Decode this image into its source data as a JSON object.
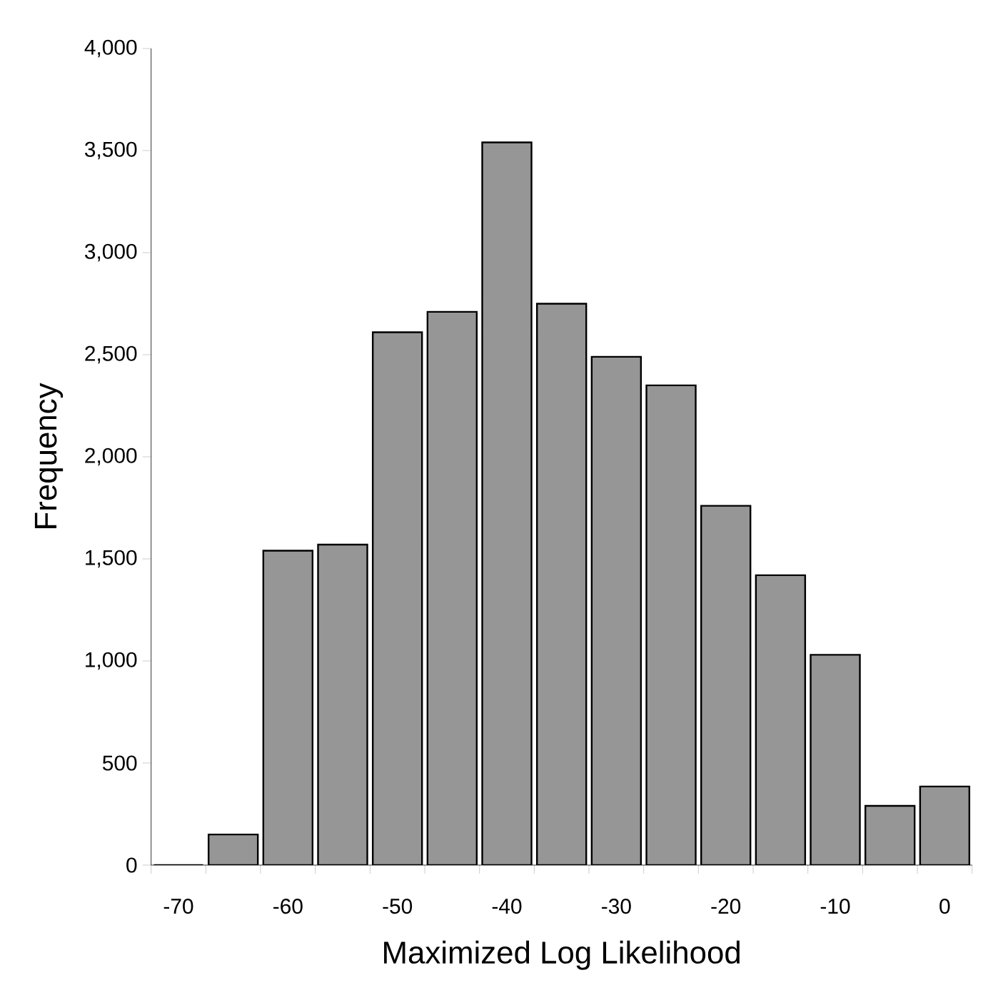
{
  "chart_data": {
    "type": "bar",
    "xlabel": "Maximized Log Likelihood",
    "ylabel": "Frequency",
    "categories": [
      "-70",
      null,
      "-60",
      null,
      "-50",
      null,
      "-40",
      null,
      "-30",
      null,
      "-20",
      null,
      "-10",
      null,
      "0"
    ],
    "values": [
      0,
      150,
      1540,
      1570,
      2610,
      2710,
      3540,
      2750,
      2490,
      2350,
      1760,
      1420,
      1030,
      290,
      385
    ],
    "color": "#969696",
    "ylim": [
      0,
      4000
    ],
    "yticks": [
      0,
      500,
      {
        "value": 1000,
        "label": "1,000"
      },
      {
        "value": 1500,
        "label": "1,500"
      },
      {
        "value": 2000,
        "label": "2,000"
      },
      {
        "value": 2500,
        "label": "2,500"
      },
      {
        "value": 3000,
        "label": "3,000"
      },
      {
        "value": 3500,
        "label": "3,500"
      },
      {
        "value": 4000,
        "label": "4,000"
      }
    ],
    "grid": false
  }
}
